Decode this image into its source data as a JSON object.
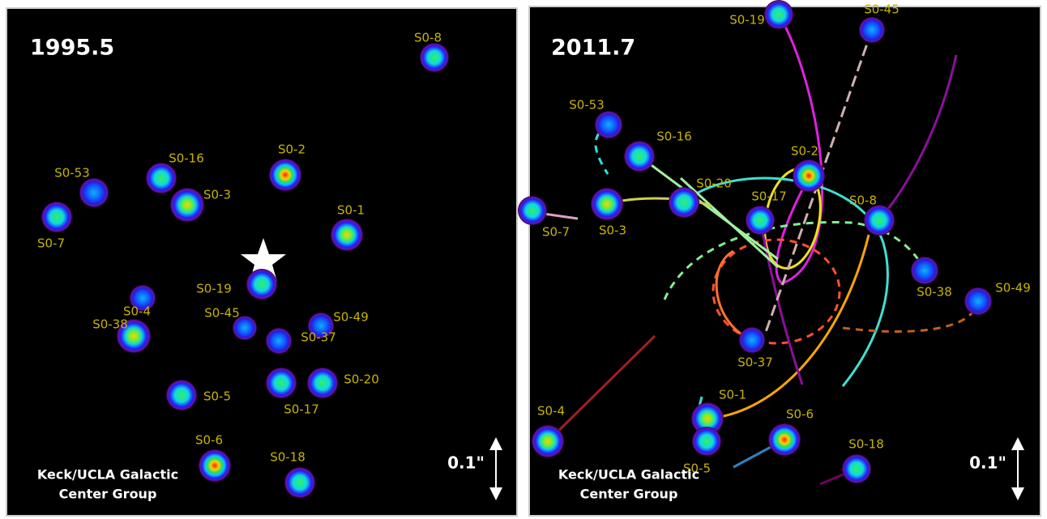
{
  "panels": [
    {
      "year": "1995.5",
      "stars": [
        "S0-8",
        "S0-2",
        "S0-16",
        "S0-3",
        "S0-53",
        "S0-7",
        "S0-1",
        "S0-19",
        "S0-4",
        "S0-38",
        "S0-45",
        "S0-49",
        "S0-37",
        "S0-17",
        "S0-20",
        "S0-5",
        "S0-6",
        "S0-18"
      ],
      "credit": [
        "Keck/UCLA Galactic",
        "Center Group"
      ],
      "scale": "0.1\""
    },
    {
      "year": "2011.7",
      "stars": [
        "S0-19",
        "S0-45",
        "S0-53",
        "S0-16",
        "S0-2",
        "S0-20",
        "S0-17",
        "S0-8",
        "S0-7",
        "S0-3",
        "S0-38",
        "S0-49",
        "S0-37",
        "S0-1",
        "S0-4",
        "S0-6",
        "S0-5",
        "S0-18"
      ],
      "credit": [
        "Keck/UCLA Galactic",
        "Center Group"
      ],
      "scale": "0.1\""
    }
  ]
}
